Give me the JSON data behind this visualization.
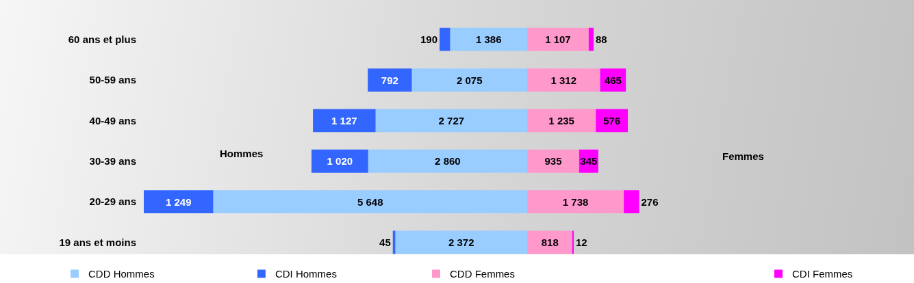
{
  "chart_data": [
    {
      "type": "bar",
      "orientation": "horizontal",
      "stacked": true,
      "categories": [
        "60 ans et plus",
        "50-59 ans",
        "40-49 ans",
        "30-39 ans",
        "20-29 ans",
        "19 ans et moins"
      ],
      "series": [
        {
          "name": "CDD Hommes",
          "color": "#99ccff",
          "values": [
            1386,
            2075,
            2727,
            2860,
            5648,
            2372
          ],
          "value_labels": [
            "1 386",
            "2 075",
            "2 727",
            "2 860",
            "5 648",
            "2 372"
          ]
        },
        {
          "name": "CDI Hommes",
          "color": "#3366ff",
          "values": [
            190,
            792,
            1127,
            1020,
            1249,
            45
          ],
          "value_labels": [
            "190",
            "792",
            "1 127",
            "1 020",
            "1 249",
            "45"
          ]
        }
      ],
      "xlim": [
        6897,
        0
      ],
      "annotations": [
        "Hommes"
      ],
      "legend": "bottom",
      "tick_labels": "y"
    },
    {
      "type": "bar",
      "orientation": "horizontal",
      "stacked": true,
      "categories": [
        null,
        null,
        null,
        null,
        null,
        null
      ],
      "series": [
        {
          "name": "CDD Femmes",
          "color": "#ff99cc",
          "values": [
            1107,
            1312,
            1235,
            935,
            1738,
            818
          ],
          "value_labels": [
            "1 107",
            "1 312",
            "1 235",
            "935",
            "1 738",
            "818"
          ]
        },
        {
          "name": "CDI Femmes",
          "color": "#ff00ff",
          "values": [
            88,
            465,
            576,
            345,
            276,
            12
          ],
          "value_labels": [
            "88",
            "465",
            "576",
            "345",
            "276",
            "12"
          ]
        }
      ],
      "annotations": [
        "Femmes"
      ],
      "legend": "bottom",
      "tick_labels": false
    }
  ]
}
